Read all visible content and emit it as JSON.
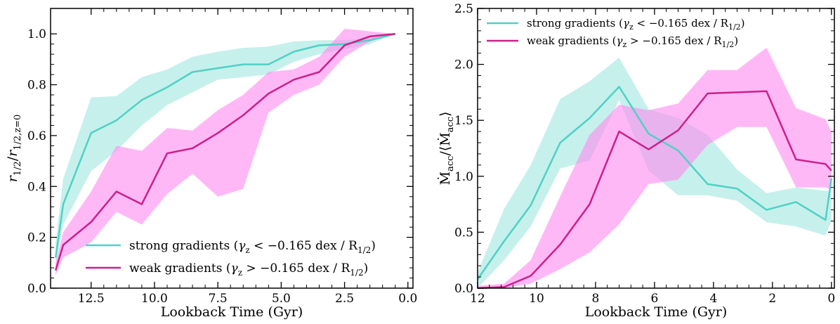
{
  "colors": {
    "strong_line": "#4fd1c5",
    "strong_band": "#aee9e4",
    "weak_line": "#cc1f8a",
    "weak_band": "#ff88f0"
  },
  "chart_data": [
    {
      "type": "line",
      "xlabel": "Lookback Time (Gyr)",
      "ylabel": "r_1/2 / r_1/2,z=0",
      "ylabel_main": "r",
      "ylabel_sub1": "1/2",
      "ylabel_sep": "/",
      "ylabel_main2": "r",
      "ylabel_sub2": "1/2,z=0",
      "xlim": [
        14.1,
        -0.2
      ],
      "ylim": [
        0.0,
        1.1
      ],
      "xticks": [
        12.5,
        10.0,
        7.5,
        5.0,
        2.5,
        0.0
      ],
      "xtick_labels": [
        "12.5",
        "10.0",
        "7.5",
        "5.0",
        "2.5",
        "0.0"
      ],
      "yticks": [
        0.0,
        0.2,
        0.4,
        0.6,
        0.8,
        1.0
      ],
      "ytick_labels": [
        "0.0",
        "0.2",
        "0.4",
        "0.6",
        "0.8",
        "1.0"
      ],
      "legend_position": "lower-right",
      "series": [
        {
          "name": "strong gradients",
          "legend_prefix": "strong gradients (",
          "legend_math": "γ",
          "legend_sub": "z",
          "legend_rel": " < −0.165 dex / R",
          "legend_sub2": "1/2",
          "legend_suffix": ")",
          "color_key": "strong",
          "x": [
            13.9,
            13.6,
            12.5,
            11.5,
            10.5,
            9.5,
            8.5,
            7.5,
            6.5,
            5.5,
            4.5,
            3.5,
            2.5,
            1.5,
            0.5
          ],
          "y": [
            0.12,
            0.33,
            0.61,
            0.66,
            0.74,
            0.79,
            0.85,
            0.865,
            0.88,
            0.88,
            0.93,
            0.955,
            0.96,
            0.975,
            1.0
          ],
          "lower": [
            0.09,
            0.25,
            0.46,
            0.54,
            0.64,
            0.72,
            0.77,
            0.82,
            0.83,
            0.84,
            0.89,
            0.92,
            0.94,
            0.96,
            1.0
          ],
          "upper": [
            0.18,
            0.43,
            0.75,
            0.755,
            0.83,
            0.86,
            0.91,
            0.93,
            0.945,
            0.95,
            0.97,
            0.975,
            0.975,
            0.985,
            1.0
          ]
        },
        {
          "name": "weak gradients",
          "legend_prefix": "weak gradients (",
          "legend_math": "γ",
          "legend_sub": "z",
          "legend_rel": " > −0.165 dex / R",
          "legend_sub2": "1/2",
          "legend_suffix": ")",
          "color_key": "weak",
          "x": [
            13.9,
            13.6,
            12.5,
            11.5,
            10.5,
            9.5,
            8.5,
            7.5,
            6.5,
            5.5,
            4.5,
            3.5,
            2.5,
            1.5,
            0.5
          ],
          "y": [
            0.07,
            0.17,
            0.26,
            0.38,
            0.33,
            0.53,
            0.55,
            0.61,
            0.68,
            0.765,
            0.82,
            0.85,
            0.955,
            0.99,
            1.0
          ],
          "lower": [
            0.05,
            0.12,
            0.18,
            0.3,
            0.25,
            0.37,
            0.45,
            0.36,
            0.39,
            0.69,
            0.76,
            0.8,
            0.91,
            0.97,
            1.0
          ],
          "upper": [
            0.1,
            0.22,
            0.38,
            0.56,
            0.54,
            0.63,
            0.62,
            0.7,
            0.76,
            0.85,
            0.86,
            0.91,
            1.02,
            1.01,
            1.0
          ]
        }
      ]
    },
    {
      "type": "line",
      "xlabel": "Lookback Time (Gyr)",
      "ylabel": "Ṁ_acc / ⟨Ṁ_acc⟩",
      "ylabel_main": "Ṁ",
      "ylabel_sub1": "acc",
      "ylabel_sep": "/⟨",
      "ylabel_main2": "Ṁ",
      "ylabel_sub2": "acc",
      "ylabel_end": "⟩",
      "xlim": [
        12.0,
        -0.1
      ],
      "ylim": [
        0.0,
        2.5
      ],
      "xticks": [
        12,
        10,
        8,
        6,
        4,
        2,
        0
      ],
      "xtick_labels": [
        "12",
        "10",
        "8",
        "6",
        "4",
        "2",
        "0"
      ],
      "yticks": [
        0.0,
        0.5,
        1.0,
        1.5,
        2.0,
        2.5
      ],
      "ytick_labels": [
        "0.0",
        "0.5",
        "1.0",
        "1.5",
        "2.0",
        "2.5"
      ],
      "legend_position": "upper-left",
      "series": [
        {
          "name": "strong gradients",
          "legend_prefix": "strong gradients (",
          "legend_math": "γ",
          "legend_sub": "z",
          "legend_rel": " < −0.165 dex / R",
          "legend_sub2": "1/2",
          "legend_suffix": ")",
          "color_key": "strong",
          "x": [
            12,
            11.1,
            10.2,
            9.2,
            8.2,
            7.2,
            6.2,
            5.2,
            4.2,
            3.2,
            2.2,
            1.2,
            0.2,
            0
          ],
          "y": [
            0.08,
            0.42,
            0.74,
            1.3,
            1.52,
            1.8,
            1.38,
            1.23,
            0.93,
            0.89,
            0.7,
            0.77,
            0.61,
            0.98
          ],
          "lower": [
            0.0,
            0.25,
            0.55,
            1.07,
            1.14,
            1.68,
            1.05,
            0.83,
            0.83,
            0.78,
            0.59,
            0.55,
            0.47,
            0.6
          ],
          "upper": [
            0.14,
            0.71,
            1.1,
            1.69,
            1.85,
            2.06,
            1.6,
            1.52,
            1.37,
            1.06,
            0.85,
            0.9,
            0.87,
            0.87
          ]
        },
        {
          "name": "weak gradients",
          "legend_prefix": "weak gradients (",
          "legend_math": "γ",
          "legend_sub": "z",
          "legend_rel": " > −0.165 dex / R",
          "legend_sub2": "1/2",
          "legend_suffix": ")",
          "color_key": "weak",
          "x": [
            12,
            11.1,
            10.2,
            9.2,
            8.2,
            7.2,
            6.2,
            5.2,
            4.2,
            3.2,
            2.2,
            1.2,
            0.2,
            0
          ],
          "y": [
            0.0,
            0.01,
            0.11,
            0.39,
            0.75,
            1.4,
            1.24,
            1.41,
            1.74,
            1.75,
            1.76,
            1.15,
            1.11,
            1.05
          ],
          "lower": [
            0.0,
            0.0,
            0.04,
            0.17,
            0.32,
            0.57,
            0.93,
            0.97,
            1.28,
            1.44,
            1.44,
            0.9,
            0.9,
            0.88
          ],
          "upper": [
            0.02,
            0.04,
            0.25,
            0.82,
            1.37,
            1.64,
            1.59,
            1.65,
            1.95,
            1.95,
            2.15,
            1.61,
            1.51,
            1.4
          ]
        }
      ]
    }
  ]
}
